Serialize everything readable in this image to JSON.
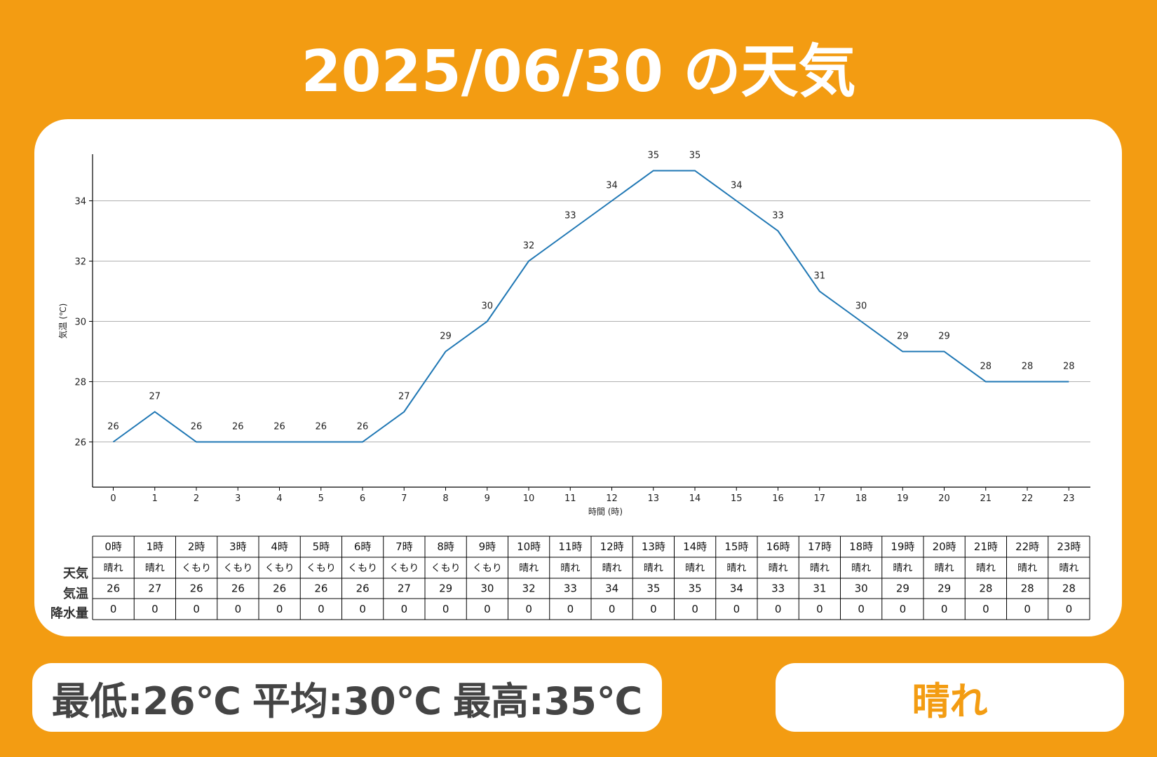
{
  "title": "2025/06/30 の天気",
  "colors": {
    "background": "#F39C12",
    "card": "#FFFFFF",
    "line": "#1F77B4",
    "accent_text": "#F39C12",
    "summary_text": "#444444"
  },
  "chart_data": {
    "type": "line",
    "x": [
      0,
      1,
      2,
      3,
      4,
      5,
      6,
      7,
      8,
      9,
      10,
      11,
      12,
      13,
      14,
      15,
      16,
      17,
      18,
      19,
      20,
      21,
      22,
      23
    ],
    "series": [
      {
        "values": [
          26,
          27,
          26,
          26,
          26,
          26,
          26,
          27,
          29,
          30,
          32,
          33,
          34,
          35,
          35,
          34,
          33,
          31,
          30,
          29,
          29,
          28,
          28,
          28
        ]
      }
    ],
    "xlabel": "時間 (時)",
    "ylabel": "気温 (℃)",
    "xlim": [
      -0.5,
      23.5
    ],
    "ylim": [
      24.5,
      35.5
    ],
    "yticks": [
      26,
      28,
      30,
      32,
      34
    ],
    "grid": "horizontal",
    "data_labels": true
  },
  "table": {
    "hours": [
      "0時",
      "1時",
      "2時",
      "3時",
      "4時",
      "5時",
      "6時",
      "7時",
      "8時",
      "9時",
      "10時",
      "11時",
      "12時",
      "13時",
      "14時",
      "15時",
      "16時",
      "17時",
      "18時",
      "19時",
      "20時",
      "21時",
      "22時",
      "23時"
    ],
    "row_labels": [
      "天気",
      "気温",
      "降水量"
    ],
    "weather": [
      "晴れ",
      "晴れ",
      "くもり",
      "くもり",
      "くもり",
      "くもり",
      "くもり",
      "くもり",
      "くもり",
      "くもり",
      "晴れ",
      "晴れ",
      "晴れ",
      "晴れ",
      "晴れ",
      "晴れ",
      "晴れ",
      "晴れ",
      "晴れ",
      "晴れ",
      "晴れ",
      "晴れ",
      "晴れ",
      "晴れ"
    ],
    "temperature": [
      "26",
      "27",
      "26",
      "26",
      "26",
      "26",
      "26",
      "27",
      "29",
      "30",
      "32",
      "33",
      "34",
      "35",
      "35",
      "34",
      "33",
      "31",
      "30",
      "29",
      "29",
      "28",
      "28",
      "28"
    ],
    "precipitation": [
      "0",
      "0",
      "0",
      "0",
      "0",
      "0",
      "0",
      "0",
      "0",
      "0",
      "0",
      "0",
      "0",
      "0",
      "0",
      "0",
      "0",
      "0",
      "0",
      "0",
      "0",
      "0",
      "0",
      "0"
    ]
  },
  "summary": {
    "min": "最低:26℃",
    "avg": "平均:30℃",
    "max": "最高:35℃"
  },
  "overall_weather": "晴れ"
}
